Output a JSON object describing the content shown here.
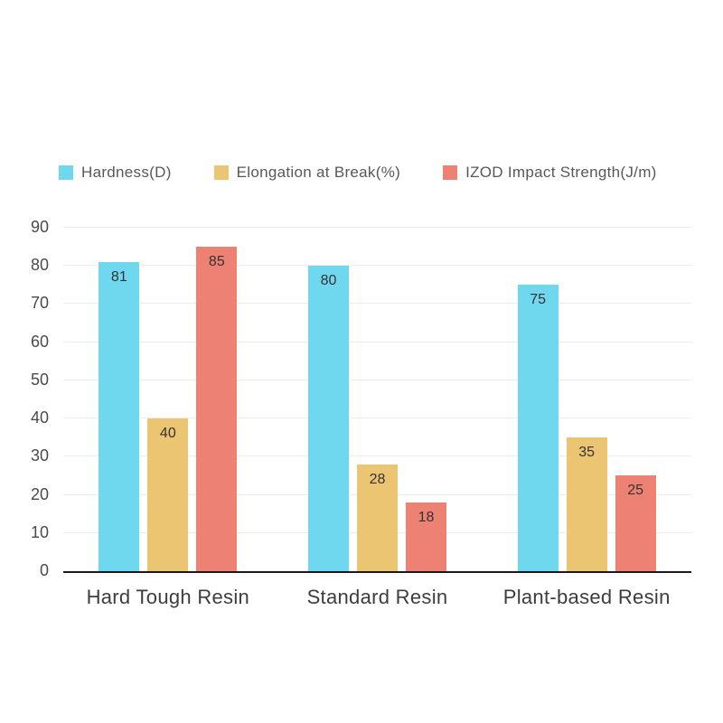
{
  "chart_data": {
    "type": "bar",
    "categories": [
      "Hard Tough Resin",
      "Standard Resin",
      "Plant-based Resin"
    ],
    "series": [
      {
        "name": "Hardness(D)",
        "color": "#6FD8EE",
        "values": [
          81,
          80,
          75
        ]
      },
      {
        "name": "Elongation at Break(%)",
        "color": "#EBC572",
        "values": [
          40,
          28,
          35
        ]
      },
      {
        "name": "IZOD Impact Strength(J/m)",
        "color": "#ED8173",
        "values": [
          85,
          18,
          25
        ]
      }
    ],
    "title": "",
    "xlabel": "",
    "ylabel": "",
    "ylim": [
      0,
      90
    ],
    "yticks": [
      0,
      10,
      20,
      30,
      40,
      50,
      60,
      70,
      80,
      90
    ],
    "grid": true,
    "legend_position": "top",
    "bar_value_labels_shown": true,
    "axis_line_color": "#1a1a1a",
    "gridline_color": "#ededed"
  }
}
